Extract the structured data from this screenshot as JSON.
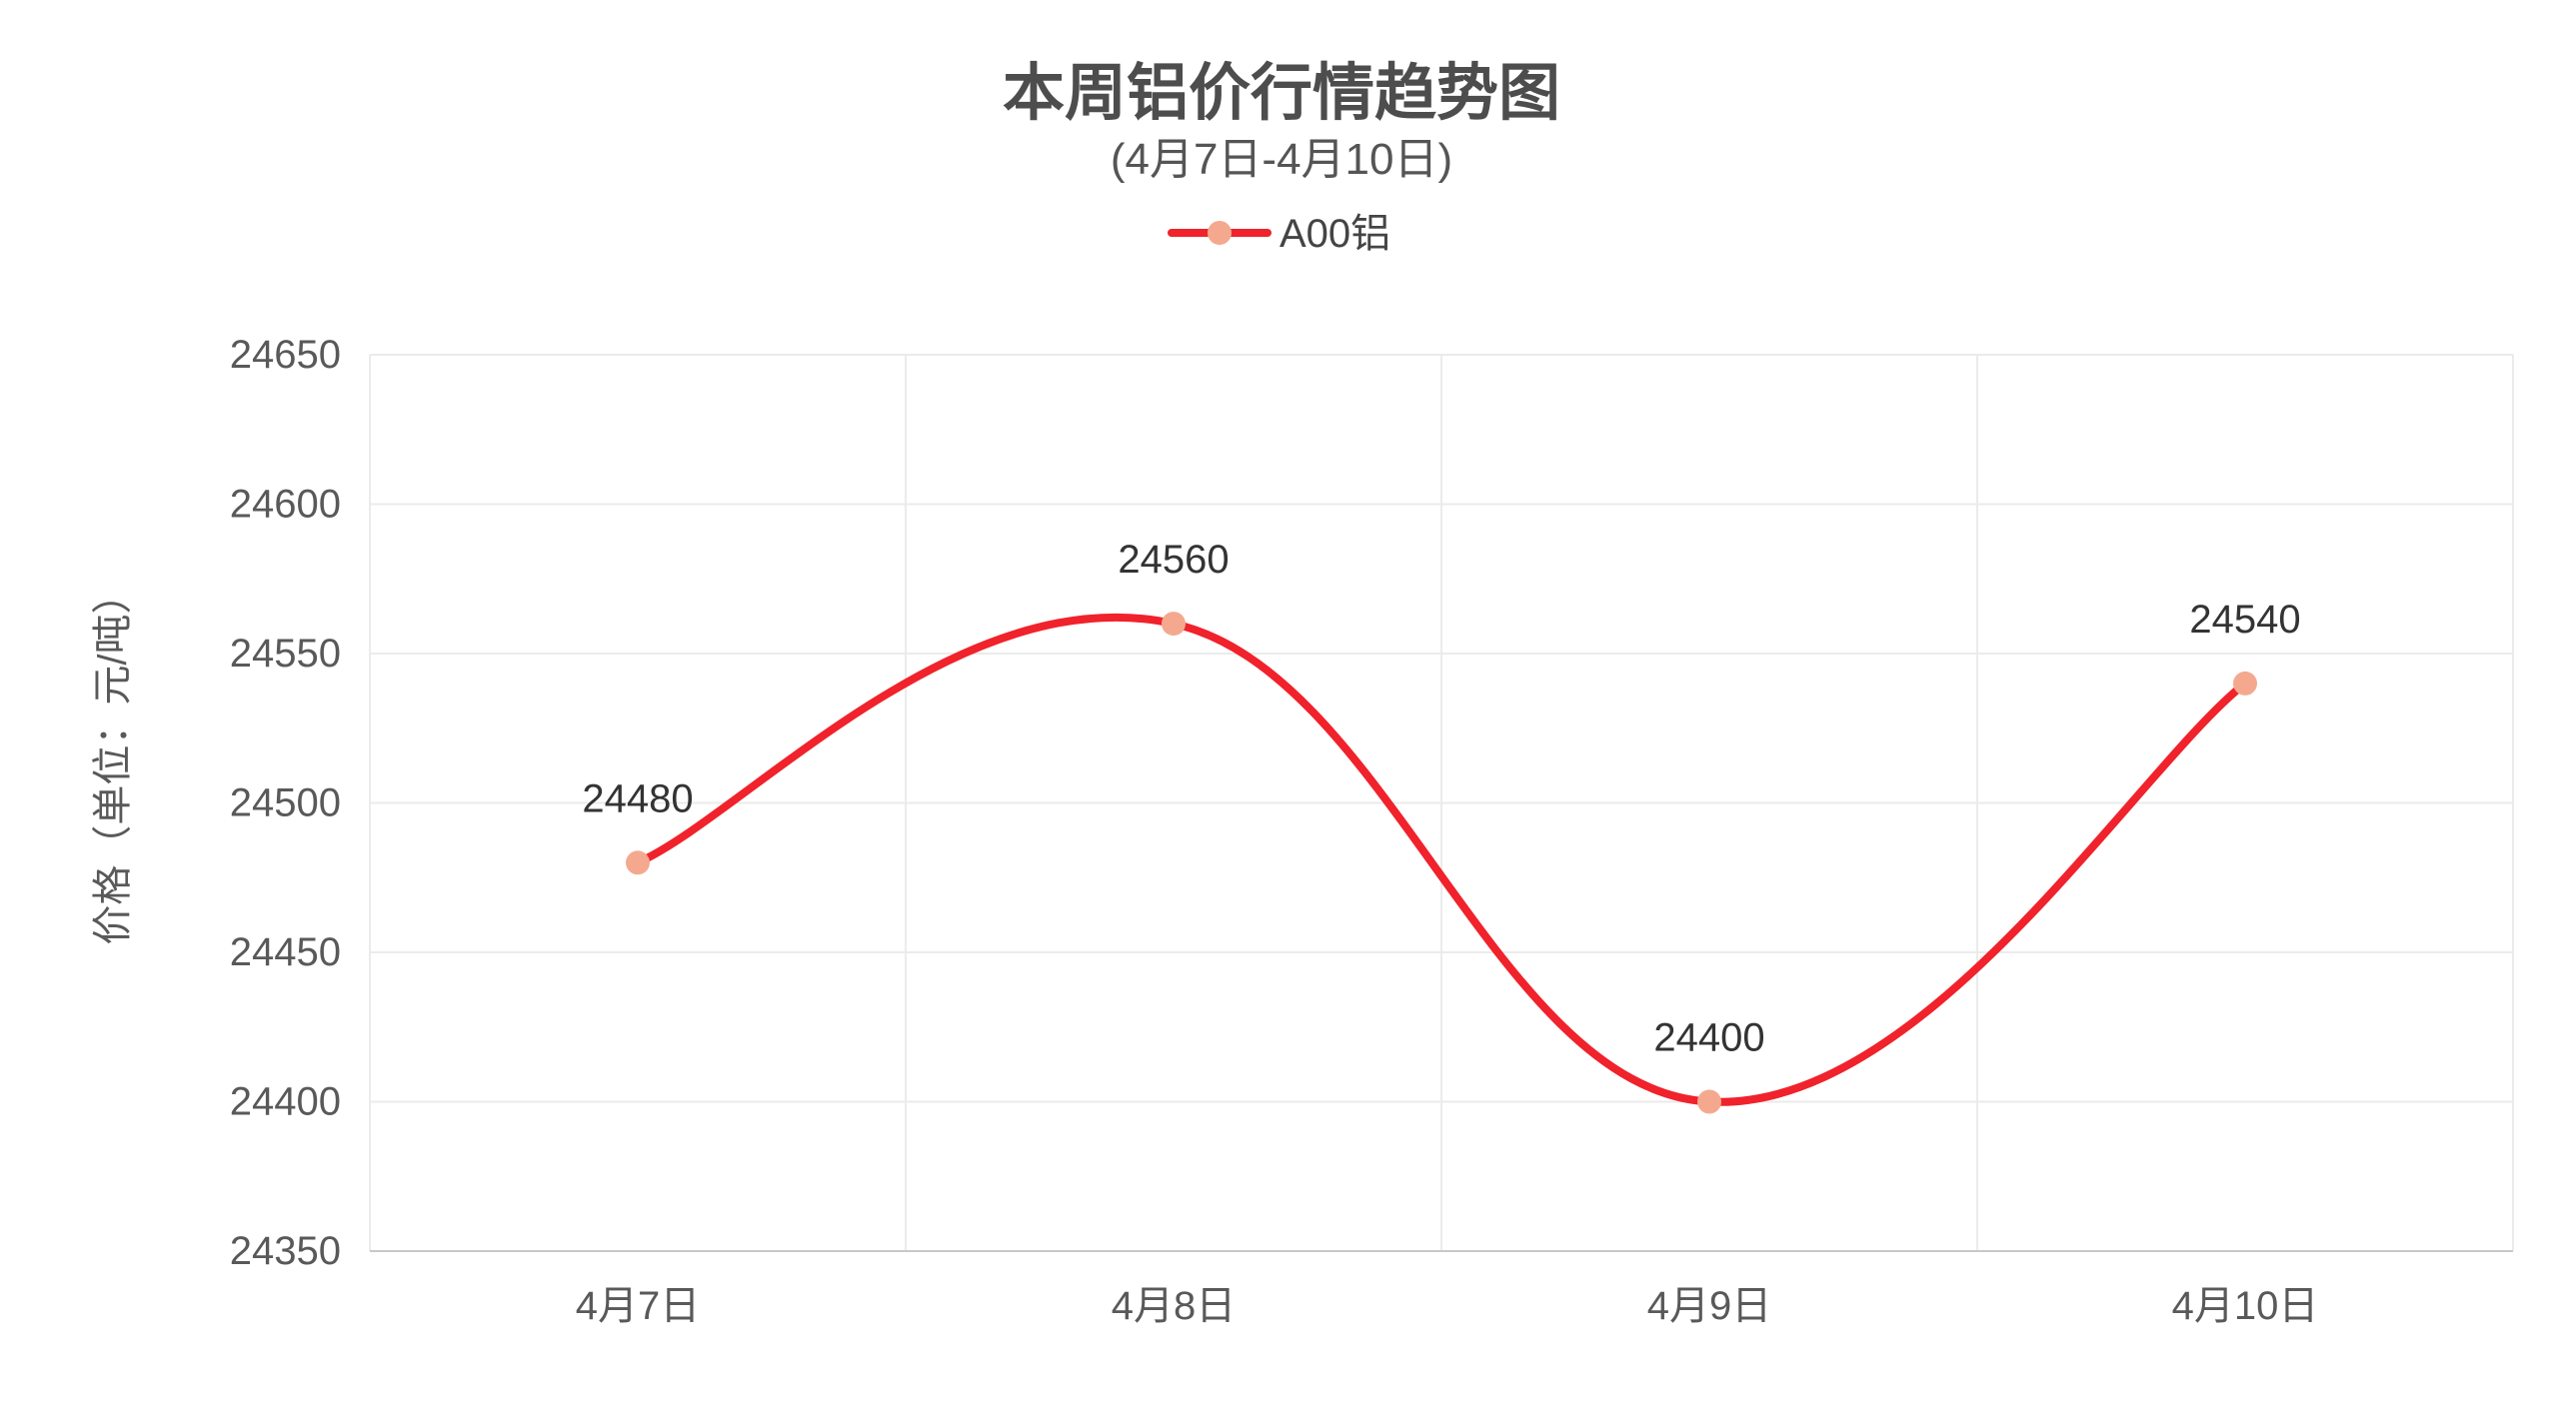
{
  "colors": {
    "line": "#f0222b",
    "marker": "#f4a98f",
    "grid": "#ebebeb",
    "axis": "#c8c8c8"
  },
  "chart_data": {
    "type": "line",
    "title": "本周铝价行情趋势图",
    "subtitle": "(4月7日-4月10日)",
    "categories": [
      "4月7日",
      "4月8日",
      "4月9日",
      "4月10日"
    ],
    "series": [
      {
        "name": "A00铝",
        "values": [
          24480,
          24560,
          24400,
          24540
        ],
        "smooth": true
      }
    ],
    "ylabel": "价格（单位：元/吨）",
    "ylim": [
      24350,
      24650
    ],
    "yticks": [
      24350,
      24400,
      24450,
      24500,
      24550,
      24600,
      24650
    ],
    "data_labels": true,
    "grid": true,
    "legend": "top-center"
  }
}
